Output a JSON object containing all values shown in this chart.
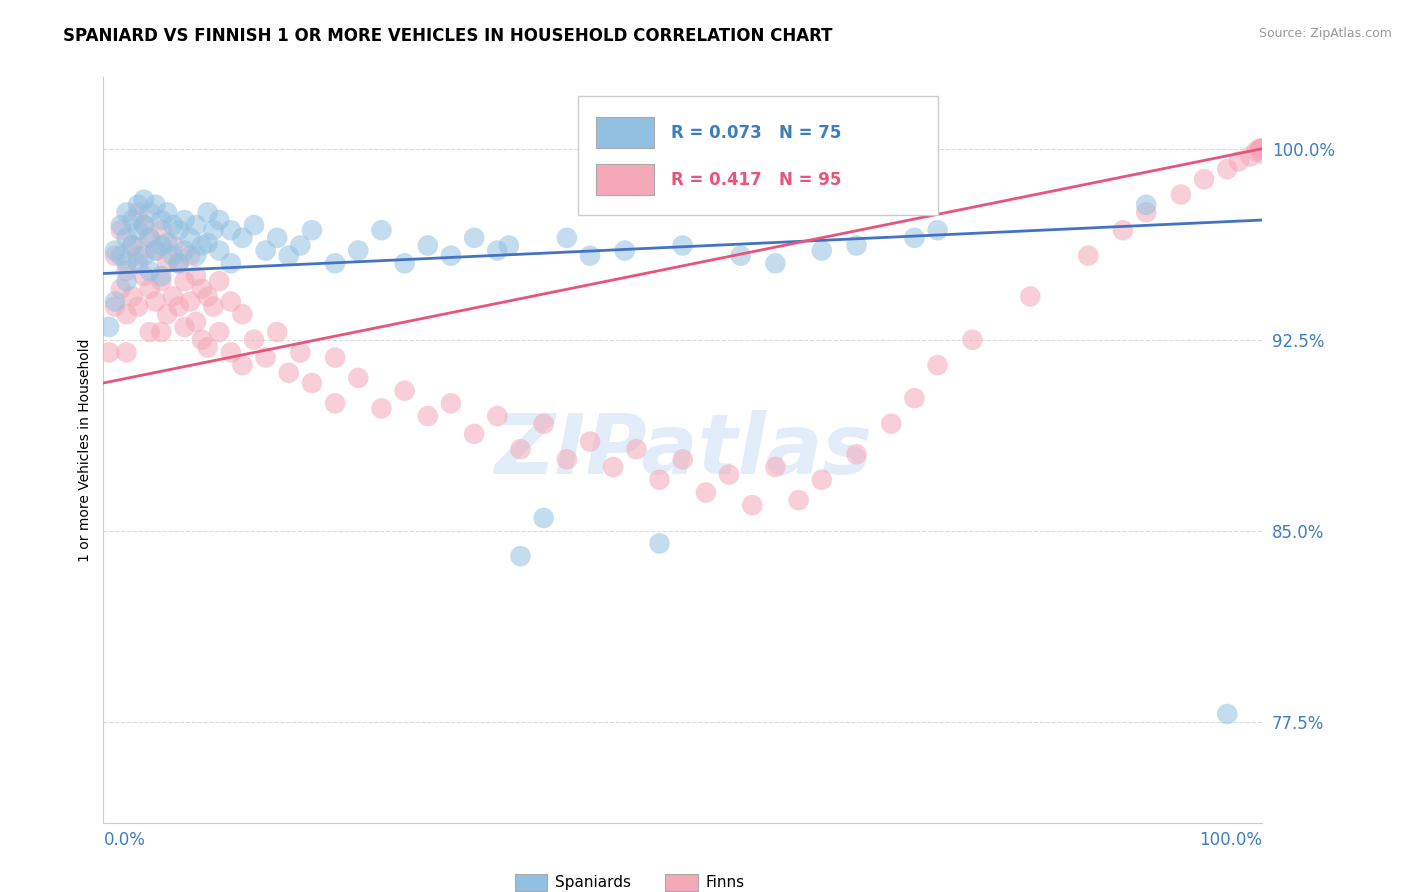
{
  "title": "SPANIARD VS FINNISH 1 OR MORE VEHICLES IN HOUSEHOLD CORRELATION CHART",
  "source_text": "Source: ZipAtlas.com",
  "ylabel": "1 or more Vehicles in Household",
  "ytick_labels": [
    "77.5%",
    "85.0%",
    "92.5%",
    "100.0%"
  ],
  "ytick_values": [
    0.775,
    0.85,
    0.925,
    1.0
  ],
  "xlim": [
    0.0,
    1.0
  ],
  "ylim": [
    0.735,
    1.028
  ],
  "legend_bottom_blue": "Spaniards",
  "legend_bottom_pink": "Finns",
  "blue_color": "#92c0e0",
  "pink_color": "#f4a8b8",
  "blue_line_color": "#4472c4",
  "pink_line_color": "#e8547a",
  "watermark_text": "ZIPatlas",
  "blue_line_start_y": 0.951,
  "blue_line_end_y": 0.972,
  "pink_line_start_y": 0.908,
  "pink_line_end_y": 1.0,
  "blue_scatter_x": [
    0.005,
    0.01,
    0.01,
    0.015,
    0.015,
    0.02,
    0.02,
    0.02,
    0.02,
    0.025,
    0.025,
    0.03,
    0.03,
    0.03,
    0.035,
    0.035,
    0.035,
    0.04,
    0.04,
    0.04,
    0.045,
    0.045,
    0.05,
    0.05,
    0.05,
    0.055,
    0.055,
    0.06,
    0.06,
    0.065,
    0.065,
    0.07,
    0.07,
    0.075,
    0.08,
    0.08,
    0.085,
    0.09,
    0.09,
    0.095,
    0.1,
    0.1,
    0.11,
    0.11,
    0.12,
    0.13,
    0.14,
    0.15,
    0.16,
    0.17,
    0.18,
    0.2,
    0.22,
    0.24,
    0.26,
    0.28,
    0.3,
    0.32,
    0.34,
    0.35,
    0.36,
    0.38,
    0.4,
    0.42,
    0.45,
    0.48,
    0.5,
    0.55,
    0.58,
    0.62,
    0.65,
    0.7,
    0.72,
    0.9,
    0.97
  ],
  "blue_scatter_y": [
    0.93,
    0.96,
    0.94,
    0.97,
    0.958,
    0.975,
    0.965,
    0.955,
    0.948,
    0.972,
    0.962,
    0.978,
    0.968,
    0.955,
    0.98,
    0.97,
    0.958,
    0.975,
    0.965,
    0.952,
    0.978,
    0.96,
    0.972,
    0.962,
    0.95,
    0.975,
    0.963,
    0.97,
    0.958,
    0.968,
    0.955,
    0.972,
    0.96,
    0.965,
    0.97,
    0.958,
    0.962,
    0.975,
    0.963,
    0.968,
    0.972,
    0.96,
    0.968,
    0.955,
    0.965,
    0.97,
    0.96,
    0.965,
    0.958,
    0.962,
    0.968,
    0.955,
    0.96,
    0.968,
    0.955,
    0.962,
    0.958,
    0.965,
    0.96,
    0.962,
    0.84,
    0.855,
    0.965,
    0.958,
    0.96,
    0.845,
    0.962,
    0.958,
    0.955,
    0.96,
    0.962,
    0.965,
    0.968,
    0.978,
    0.778
  ],
  "pink_scatter_x": [
    0.005,
    0.01,
    0.01,
    0.015,
    0.015,
    0.02,
    0.02,
    0.02,
    0.025,
    0.025,
    0.03,
    0.03,
    0.03,
    0.035,
    0.035,
    0.04,
    0.04,
    0.04,
    0.045,
    0.045,
    0.05,
    0.05,
    0.05,
    0.055,
    0.055,
    0.06,
    0.06,
    0.065,
    0.065,
    0.07,
    0.07,
    0.075,
    0.075,
    0.08,
    0.08,
    0.085,
    0.085,
    0.09,
    0.09,
    0.095,
    0.1,
    0.1,
    0.11,
    0.11,
    0.12,
    0.12,
    0.13,
    0.14,
    0.15,
    0.16,
    0.17,
    0.18,
    0.2,
    0.2,
    0.22,
    0.24,
    0.26,
    0.28,
    0.3,
    0.32,
    0.34,
    0.36,
    0.38,
    0.4,
    0.42,
    0.44,
    0.46,
    0.48,
    0.5,
    0.52,
    0.54,
    0.56,
    0.58,
    0.6,
    0.62,
    0.65,
    0.68,
    0.7,
    0.72,
    0.75,
    0.8,
    0.85,
    0.88,
    0.9,
    0.93,
    0.95,
    0.97,
    0.98,
    0.99,
    0.995,
    0.998,
    0.999,
    1.0,
    1.0,
    1.0
  ],
  "pink_scatter_y": [
    0.92,
    0.938,
    0.958,
    0.945,
    0.968,
    0.952,
    0.935,
    0.92,
    0.962,
    0.942,
    0.975,
    0.958,
    0.938,
    0.97,
    0.95,
    0.965,
    0.945,
    0.928,
    0.96,
    0.94,
    0.968,
    0.948,
    0.928,
    0.955,
    0.935,
    0.962,
    0.942,
    0.955,
    0.938,
    0.948,
    0.93,
    0.958,
    0.94,
    0.95,
    0.932,
    0.945,
    0.925,
    0.942,
    0.922,
    0.938,
    0.948,
    0.928,
    0.94,
    0.92,
    0.935,
    0.915,
    0.925,
    0.918,
    0.928,
    0.912,
    0.92,
    0.908,
    0.918,
    0.9,
    0.91,
    0.898,
    0.905,
    0.895,
    0.9,
    0.888,
    0.895,
    0.882,
    0.892,
    0.878,
    0.885,
    0.875,
    0.882,
    0.87,
    0.878,
    0.865,
    0.872,
    0.86,
    0.875,
    0.862,
    0.87,
    0.88,
    0.892,
    0.902,
    0.915,
    0.925,
    0.942,
    0.958,
    0.968,
    0.975,
    0.982,
    0.988,
    0.992,
    0.995,
    0.997,
    0.999,
    1.0,
    1.0,
    0.998,
    1.0,
    1.0
  ]
}
